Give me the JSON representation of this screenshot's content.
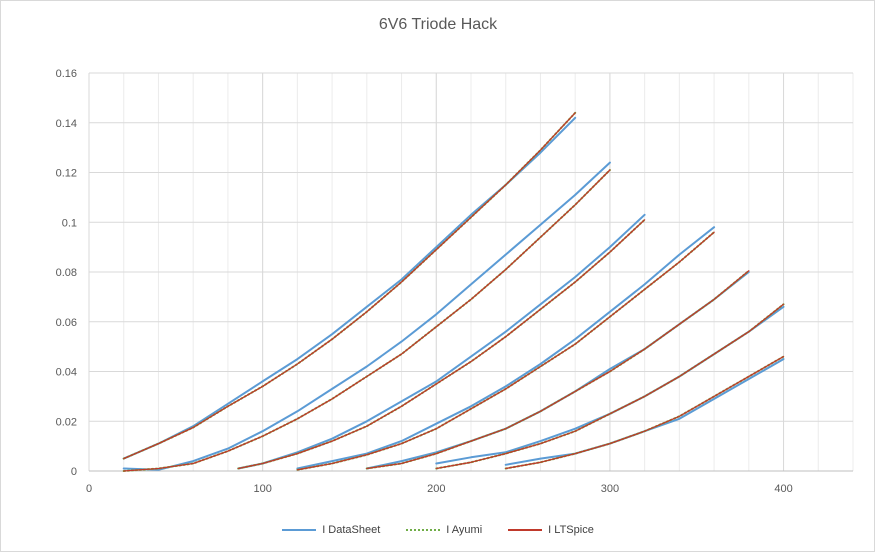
{
  "chart_data": {
    "type": "line",
    "title": "6V6 Triode Hack",
    "xlabel": "",
    "ylabel": "",
    "xlim": [
      0,
      440
    ],
    "ylim": [
      0,
      0.16
    ],
    "x_ticks": [
      0,
      100,
      200,
      300,
      400
    ],
    "y_ticks": [
      0,
      0.02,
      0.04,
      0.06,
      0.08,
      0.1,
      0.12,
      0.14,
      0.16
    ],
    "x_tick_labels": [
      "0",
      "100",
      "200",
      "300",
      "400"
    ],
    "y_tick_labels": [
      "0",
      "0.02",
      "0.04",
      "0.06",
      "0.08",
      "0.1",
      "0.12",
      "0.14",
      "0.16"
    ],
    "grid": true,
    "legend_position": "bottom",
    "series": [
      {
        "name": "I DataSheet",
        "color": "#5b9bd5",
        "style": "solid",
        "curves": [
          [
            [
              20,
              0.005
            ],
            [
              40,
              0.011
            ],
            [
              60,
              0.018
            ],
            [
              80,
              0.027
            ],
            [
              100,
              0.036
            ],
            [
              120,
              0.045
            ],
            [
              140,
              0.055
            ],
            [
              160,
              0.066
            ],
            [
              180,
              0.077
            ],
            [
              200,
              0.09
            ],
            [
              220,
              0.103
            ],
            [
              240,
              0.115
            ],
            [
              260,
              0.128
            ],
            [
              280,
              0.142
            ]
          ],
          [
            [
              20,
              0.001
            ],
            [
              40,
              0.0005
            ],
            [
              60,
              0.004
            ],
            [
              80,
              0.009
            ],
            [
              100,
              0.016
            ],
            [
              120,
              0.024
            ],
            [
              140,
              0.033
            ],
            [
              160,
              0.042
            ],
            [
              180,
              0.052
            ],
            [
              200,
              0.063
            ],
            [
              220,
              0.075
            ],
            [
              240,
              0.087
            ],
            [
              260,
              0.099
            ],
            [
              280,
              0.111
            ],
            [
              300,
              0.124
            ]
          ],
          [
            [
              86,
              0.001
            ],
            [
              100,
              0.003
            ],
            [
              120,
              0.0075
            ],
            [
              140,
              0.013
            ],
            [
              160,
              0.02
            ],
            [
              180,
              0.028
            ],
            [
              200,
              0.036
            ],
            [
              220,
              0.046
            ],
            [
              240,
              0.056
            ],
            [
              260,
              0.067
            ],
            [
              280,
              0.078
            ],
            [
              300,
              0.09
            ],
            [
              320,
              0.103
            ]
          ],
          [
            [
              120,
              0.001
            ],
            [
              140,
              0.004
            ],
            [
              160,
              0.007
            ],
            [
              180,
              0.012
            ],
            [
              200,
              0.019
            ],
            [
              220,
              0.026
            ],
            [
              240,
              0.034
            ],
            [
              260,
              0.043
            ],
            [
              280,
              0.053
            ],
            [
              300,
              0.064
            ],
            [
              320,
              0.075
            ],
            [
              340,
              0.087
            ],
            [
              360,
              0.098
            ]
          ],
          [
            [
              160,
              0.001
            ],
            [
              180,
              0.004
            ],
            [
              200,
              0.0075
            ],
            [
              220,
              0.012
            ],
            [
              240,
              0.017
            ],
            [
              260,
              0.024
            ],
            [
              280,
              0.032
            ],
            [
              300,
              0.041
            ],
            [
              320,
              0.049
            ],
            [
              340,
              0.059
            ],
            [
              360,
              0.069
            ],
            [
              380,
              0.08
            ]
          ],
          [
            [
              200,
              0.003
            ],
            [
              220,
              0.0055
            ],
            [
              240,
              0.0075
            ],
            [
              260,
              0.012
            ],
            [
              280,
              0.017
            ],
            [
              300,
              0.023
            ],
            [
              320,
              0.03
            ],
            [
              340,
              0.038
            ],
            [
              360,
              0.047
            ],
            [
              380,
              0.056
            ],
            [
              400,
              0.066
            ]
          ],
          [
            [
              240,
              0.0025
            ],
            [
              260,
              0.005
            ],
            [
              280,
              0.007
            ],
            [
              300,
              0.011
            ],
            [
              320,
              0.016
            ],
            [
              340,
              0.021
            ],
            [
              360,
              0.029
            ],
            [
              380,
              0.037
            ],
            [
              400,
              0.045
            ]
          ]
        ]
      },
      {
        "name": "I Ayumi",
        "color": "#70ad47",
        "style": "dotted",
        "curves": [
          [
            [
              20,
              0.005
            ],
            [
              40,
              0.011
            ],
            [
              60,
              0.0175
            ],
            [
              80,
              0.026
            ],
            [
              100,
              0.034
            ],
            [
              120,
              0.043
            ],
            [
              140,
              0.053
            ],
            [
              160,
              0.064
            ],
            [
              180,
              0.076
            ],
            [
              200,
              0.089
            ],
            [
              220,
              0.102
            ],
            [
              240,
              0.115
            ],
            [
              260,
              0.129
            ],
            [
              280,
              0.144
            ]
          ],
          [
            [
              20,
              0.0
            ],
            [
              40,
              0.001
            ],
            [
              60,
              0.003
            ],
            [
              80,
              0.008
            ],
            [
              100,
              0.014
            ],
            [
              120,
              0.021
            ],
            [
              140,
              0.029
            ],
            [
              160,
              0.038
            ],
            [
              180,
              0.047
            ],
            [
              200,
              0.058
            ],
            [
              220,
              0.069
            ],
            [
              240,
              0.081
            ],
            [
              260,
              0.094
            ],
            [
              280,
              0.107
            ],
            [
              300,
              0.121
            ]
          ],
          [
            [
              86,
              0.001
            ],
            [
              100,
              0.003
            ],
            [
              120,
              0.007
            ],
            [
              140,
              0.012
            ],
            [
              160,
              0.018
            ],
            [
              180,
              0.026
            ],
            [
              200,
              0.035
            ],
            [
              220,
              0.044
            ],
            [
              240,
              0.054
            ],
            [
              260,
              0.065
            ],
            [
              280,
              0.076
            ],
            [
              300,
              0.088
            ],
            [
              320,
              0.101
            ]
          ],
          [
            [
              120,
              0.0005
            ],
            [
              140,
              0.003
            ],
            [
              160,
              0.0065
            ],
            [
              180,
              0.011
            ],
            [
              200,
              0.017
            ],
            [
              220,
              0.025
            ],
            [
              240,
              0.033
            ],
            [
              260,
              0.042
            ],
            [
              280,
              0.051
            ],
            [
              300,
              0.062
            ],
            [
              320,
              0.073
            ],
            [
              340,
              0.084
            ],
            [
              360,
              0.096
            ]
          ],
          [
            [
              160,
              0.001
            ],
            [
              180,
              0.003
            ],
            [
              200,
              0.007
            ],
            [
              220,
              0.012
            ],
            [
              240,
              0.017
            ],
            [
              260,
              0.024
            ],
            [
              280,
              0.032
            ],
            [
              300,
              0.04
            ],
            [
              320,
              0.049
            ],
            [
              340,
              0.059
            ],
            [
              360,
              0.069
            ],
            [
              380,
              0.0805
            ]
          ],
          [
            [
              200,
              0.001
            ],
            [
              220,
              0.0035
            ],
            [
              240,
              0.007
            ],
            [
              260,
              0.011
            ],
            [
              280,
              0.016
            ],
            [
              300,
              0.023
            ],
            [
              320,
              0.03
            ],
            [
              340,
              0.038
            ],
            [
              360,
              0.047
            ],
            [
              380,
              0.056
            ],
            [
              400,
              0.067
            ]
          ],
          [
            [
              240,
              0.001
            ],
            [
              260,
              0.0035
            ],
            [
              280,
              0.007
            ],
            [
              300,
              0.011
            ],
            [
              320,
              0.016
            ],
            [
              340,
              0.022
            ],
            [
              360,
              0.03
            ],
            [
              380,
              0.038
            ],
            [
              400,
              0.046
            ]
          ]
        ]
      },
      {
        "name": "I LTSpice",
        "color": "#c0392b",
        "style": "solid",
        "curves": [
          [
            [
              20,
              0.005
            ],
            [
              40,
              0.011
            ],
            [
              60,
              0.0175
            ],
            [
              80,
              0.026
            ],
            [
              100,
              0.034
            ],
            [
              120,
              0.043
            ],
            [
              140,
              0.053
            ],
            [
              160,
              0.064
            ],
            [
              180,
              0.076
            ],
            [
              200,
              0.089
            ],
            [
              220,
              0.102
            ],
            [
              240,
              0.115
            ],
            [
              260,
              0.129
            ],
            [
              280,
              0.144
            ]
          ],
          [
            [
              20,
              0.0
            ],
            [
              40,
              0.001
            ],
            [
              60,
              0.003
            ],
            [
              80,
              0.008
            ],
            [
              100,
              0.014
            ],
            [
              120,
              0.021
            ],
            [
              140,
              0.029
            ],
            [
              160,
              0.038
            ],
            [
              180,
              0.047
            ],
            [
              200,
              0.058
            ],
            [
              220,
              0.069
            ],
            [
              240,
              0.081
            ],
            [
              260,
              0.094
            ],
            [
              280,
              0.107
            ],
            [
              300,
              0.121
            ]
          ],
          [
            [
              86,
              0.001
            ],
            [
              100,
              0.003
            ],
            [
              120,
              0.007
            ],
            [
              140,
              0.012
            ],
            [
              160,
              0.018
            ],
            [
              180,
              0.026
            ],
            [
              200,
              0.035
            ],
            [
              220,
              0.044
            ],
            [
              240,
              0.054
            ],
            [
              260,
              0.065
            ],
            [
              280,
              0.076
            ],
            [
              300,
              0.088
            ],
            [
              320,
              0.101
            ]
          ],
          [
            [
              120,
              0.0005
            ],
            [
              140,
              0.003
            ],
            [
              160,
              0.0065
            ],
            [
              180,
              0.011
            ],
            [
              200,
              0.017
            ],
            [
              220,
              0.025
            ],
            [
              240,
              0.033
            ],
            [
              260,
              0.042
            ],
            [
              280,
              0.051
            ],
            [
              300,
              0.062
            ],
            [
              320,
              0.073
            ],
            [
              340,
              0.084
            ],
            [
              360,
              0.096
            ]
          ],
          [
            [
              160,
              0.001
            ],
            [
              180,
              0.003
            ],
            [
              200,
              0.007
            ],
            [
              220,
              0.012
            ],
            [
              240,
              0.017
            ],
            [
              260,
              0.024
            ],
            [
              280,
              0.032
            ],
            [
              300,
              0.04
            ],
            [
              320,
              0.049
            ],
            [
              340,
              0.059
            ],
            [
              360,
              0.069
            ],
            [
              380,
              0.0805
            ]
          ],
          [
            [
              200,
              0.001
            ],
            [
              220,
              0.0035
            ],
            [
              240,
              0.007
            ],
            [
              260,
              0.011
            ],
            [
              280,
              0.016
            ],
            [
              300,
              0.023
            ],
            [
              320,
              0.03
            ],
            [
              340,
              0.038
            ],
            [
              360,
              0.047
            ],
            [
              380,
              0.056
            ],
            [
              400,
              0.067
            ]
          ],
          [
            [
              240,
              0.001
            ],
            [
              260,
              0.0035
            ],
            [
              280,
              0.007
            ],
            [
              300,
              0.011
            ],
            [
              320,
              0.016
            ],
            [
              340,
              0.022
            ],
            [
              360,
              0.03
            ],
            [
              380,
              0.038
            ],
            [
              400,
              0.046
            ]
          ]
        ]
      }
    ]
  },
  "colors": {
    "grid": "#d9d9d9",
    "axis_text": "#595959",
    "title_text": "#595959"
  }
}
